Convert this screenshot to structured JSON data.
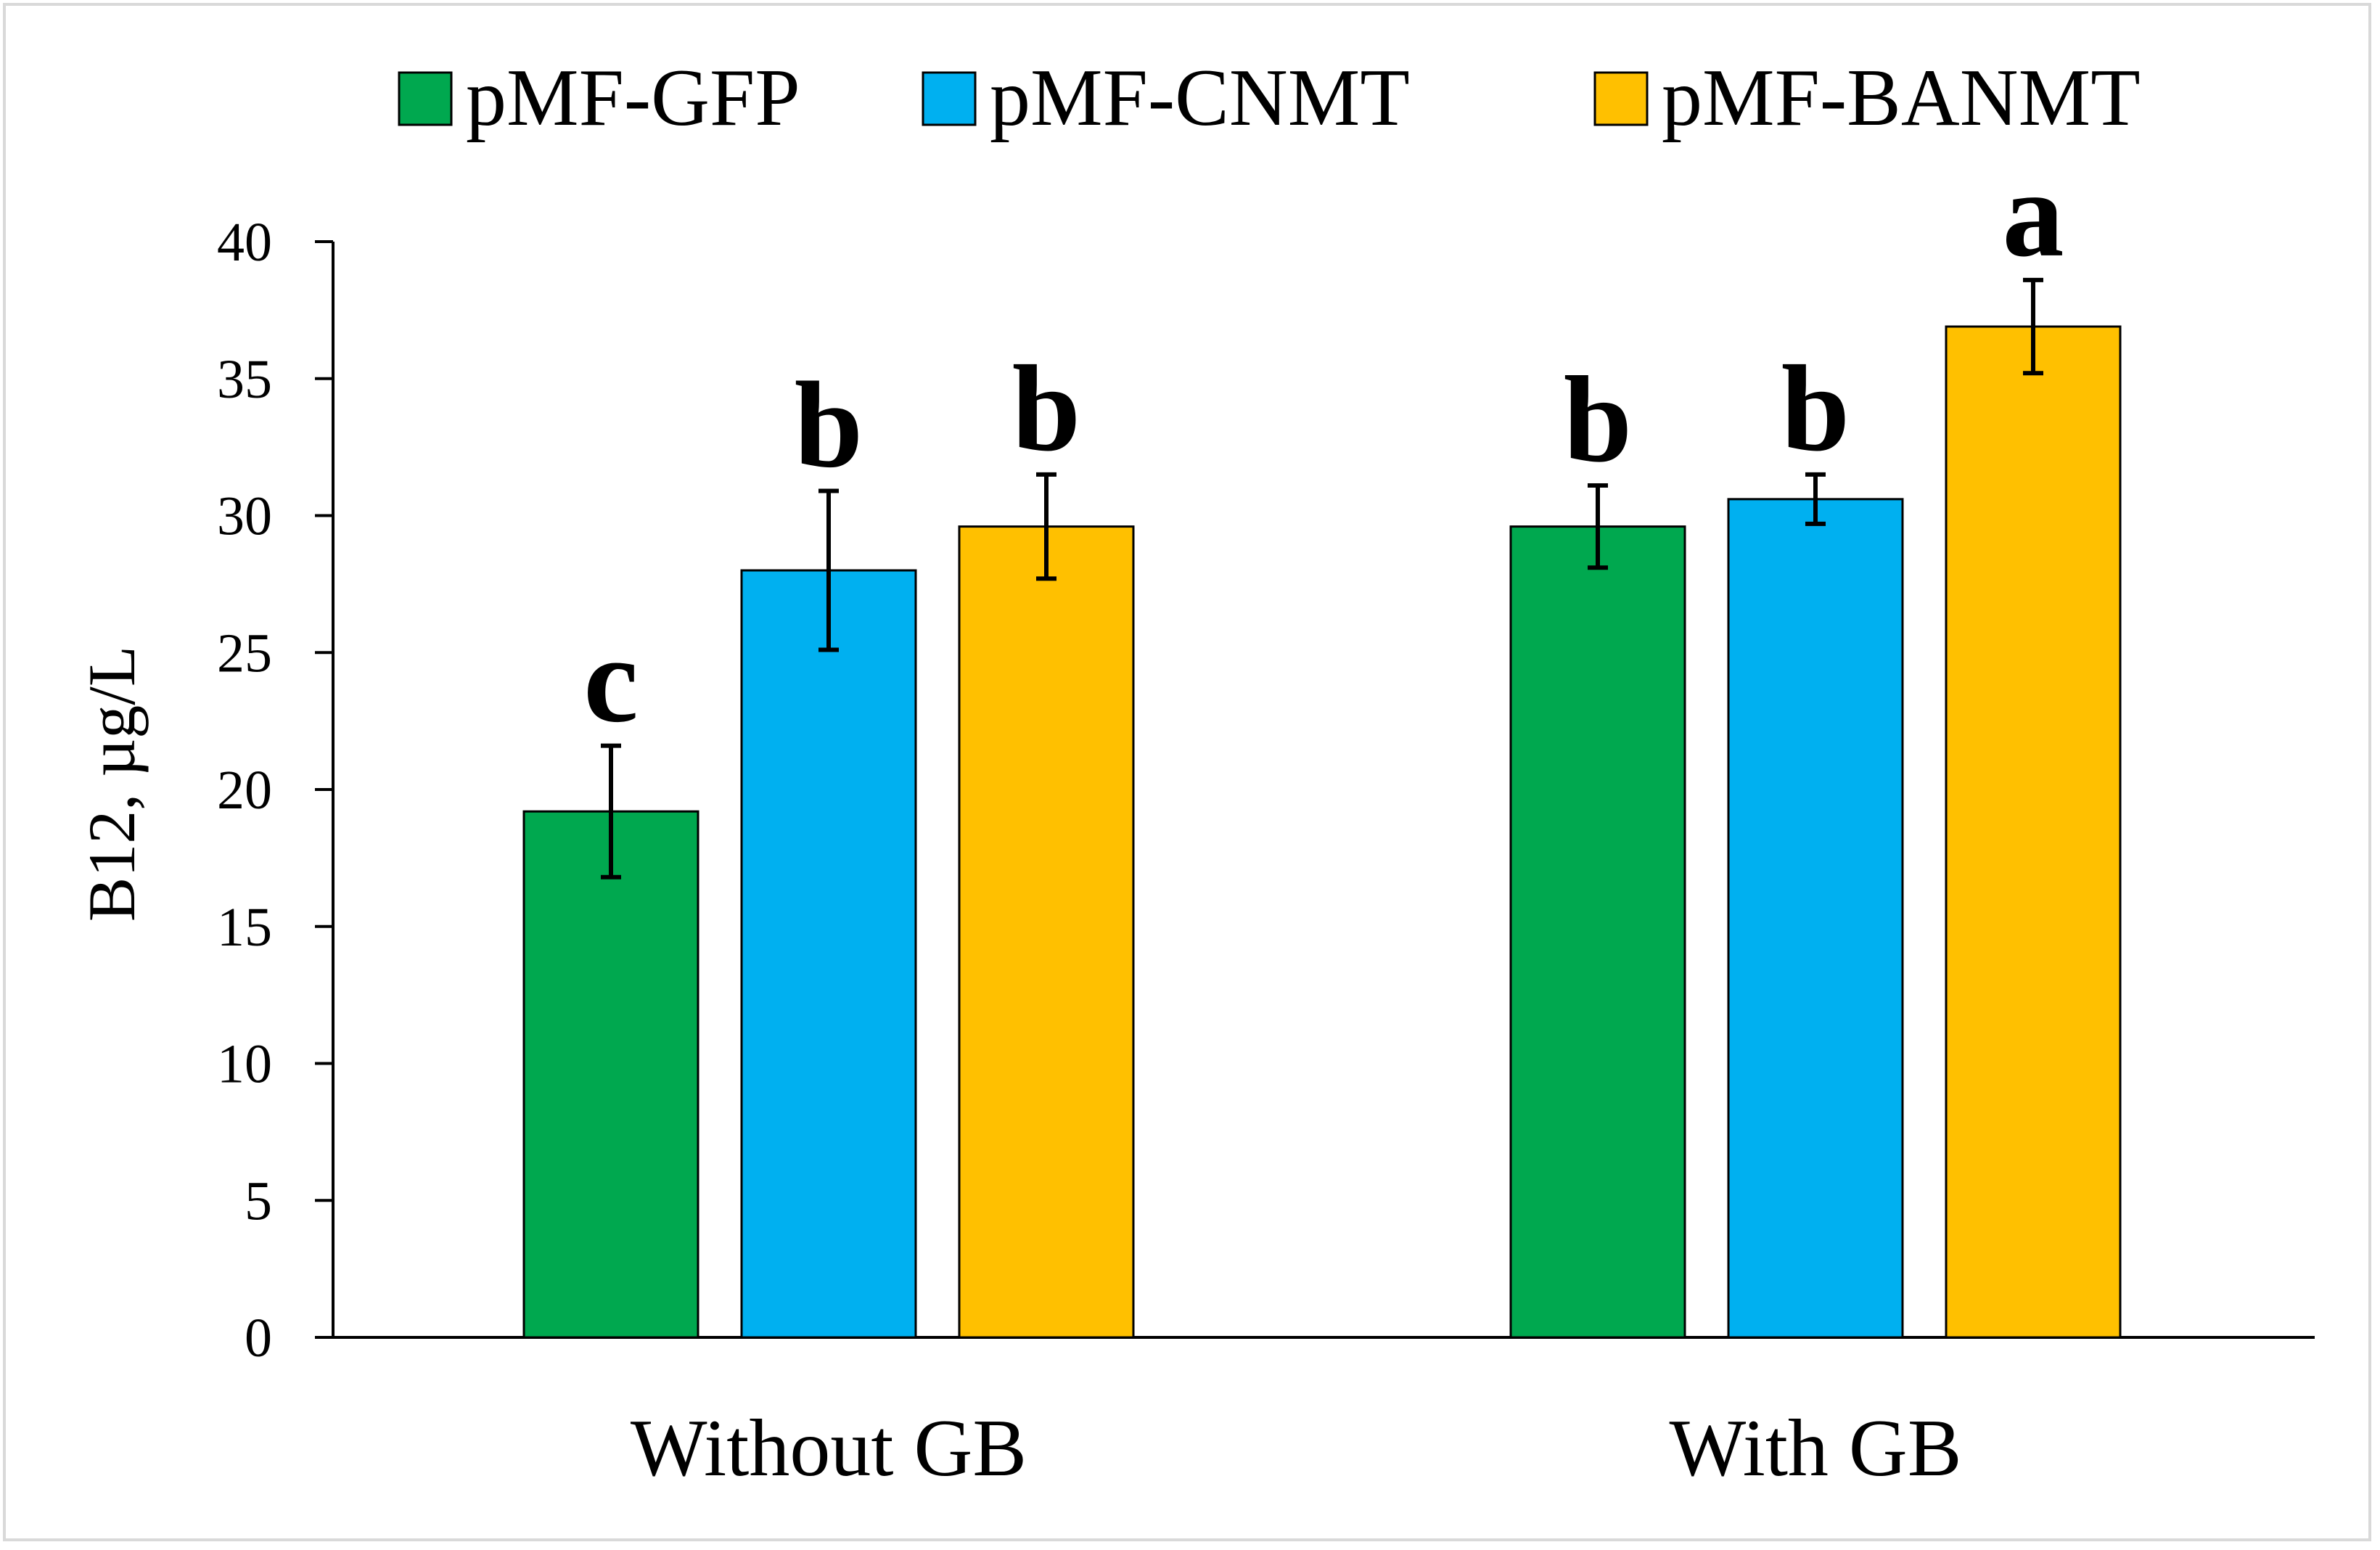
{
  "chart_data": {
    "type": "bar",
    "title": "",
    "xlabel": "",
    "ylabel": "B12, µg/L",
    "ylim": [
      0,
      40
    ],
    "yticks": [
      0,
      5,
      10,
      15,
      20,
      25,
      30,
      35,
      40
    ],
    "grid": false,
    "legend_position": "top",
    "categories": [
      "Without GB",
      "With GB"
    ],
    "series": [
      {
        "name": "pMF-GFP",
        "color": "#00A84F",
        "values": [
          19.2,
          29.6
        ],
        "errors": [
          2.4,
          1.5
        ],
        "significance": [
          "c",
          "b"
        ]
      },
      {
        "name": "pMF-CNMT",
        "color": "#00B0F0",
        "values": [
          28.0,
          30.6
        ],
        "errors": [
          2.9,
          0.9
        ],
        "significance": [
          "b",
          "b"
        ]
      },
      {
        "name": "pMF-BANMT",
        "color": "#FFC000",
        "values": [
          29.6,
          36.9
        ],
        "errors": [
          1.9,
          1.7
        ],
        "significance": [
          "b",
          "a"
        ]
      }
    ]
  }
}
